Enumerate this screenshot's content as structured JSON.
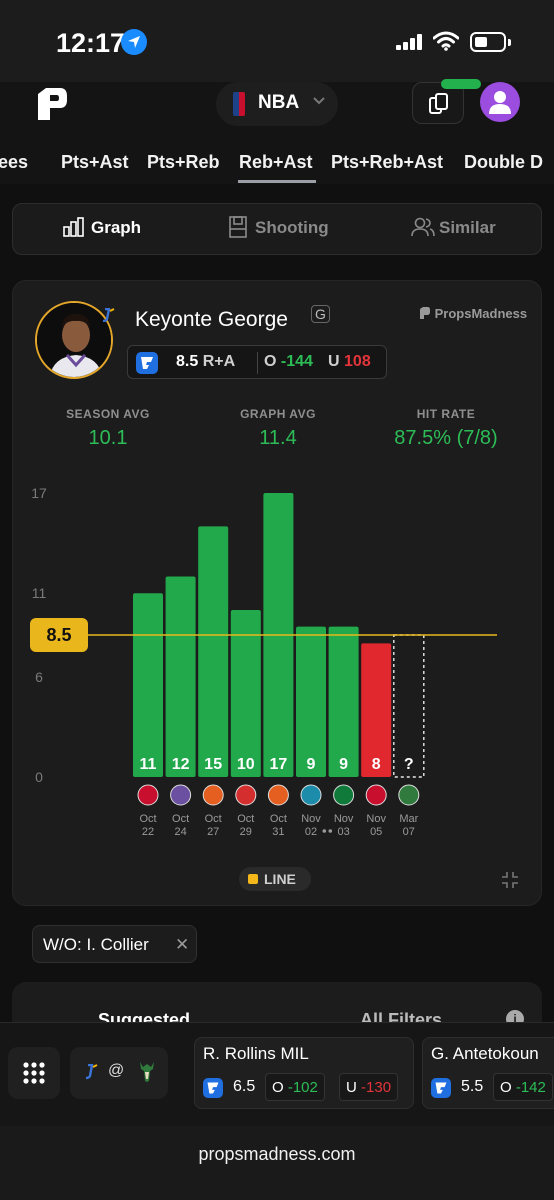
{
  "status": {
    "time": "12:17"
  },
  "header": {
    "league": "NBA"
  },
  "tabs": [
    "ees",
    "Pts+Ast",
    "Pts+Reb",
    "Reb+Ast",
    "Pts+Reb+Ast",
    "Double D"
  ],
  "active_tab": "Reb+Ast",
  "view_switch": {
    "graph": "Graph",
    "shooting": "Shooting",
    "similar": "Similar"
  },
  "player": {
    "name": "Keyonte George",
    "position": "G",
    "brand": "PropsMadness",
    "line": "8.5",
    "stat": "R+A",
    "over_label": "O",
    "over_odds": "-144",
    "under_label": "U",
    "under_odds": "108"
  },
  "stats": {
    "season_avg_label": "SEASON AVG",
    "season_avg": "10.1",
    "graph_avg_label": "GRAPH AVG",
    "graph_avg": "11.4",
    "hit_rate_label": "HIT RATE",
    "hit_rate": "87.5% (7/8)"
  },
  "chart_data": {
    "type": "bar",
    "categories": [
      "Oct 22",
      "Oct 24",
      "Oct 27",
      "Oct 29",
      "Oct 31",
      "Nov 02",
      "Nov 03",
      "Nov 05",
      "Mar 07"
    ],
    "values": [
      11,
      12,
      15,
      10,
      17,
      9,
      9,
      8,
      null
    ],
    "value_labels": [
      "11",
      "12",
      "15",
      "10",
      "17",
      "9",
      "9",
      "8",
      "?"
    ],
    "date_top": [
      "Oct",
      "Oct",
      "Oct",
      "Oct",
      "Oct",
      "Nov",
      "Nov",
      "Nov",
      "Mar"
    ],
    "date_bottom": [
      "22",
      "24",
      "27",
      "29",
      "31",
      "02",
      "03",
      "05",
      "07"
    ],
    "opponents": [
      "LAC",
      "SAC",
      "PHX",
      "POR",
      "PHX",
      "CHA",
      "BOS",
      "DET",
      "MIL"
    ],
    "y_ticks": [
      0,
      6,
      11,
      17
    ],
    "ylim": [
      0,
      17
    ],
    "line_value": 8.5,
    "line_label": "8.5",
    "colors": {
      "over": "#22a94b",
      "under": "#e0282e",
      "line": "#e9b71c"
    }
  },
  "chart_legend": {
    "line": "LINE"
  },
  "filter_chip": {
    "label": "W/O: I. Collier"
  },
  "filters": {
    "suggested": "Suggested",
    "all": "All Filters",
    "info": "i"
  },
  "bottom": {
    "matchup_at": "@",
    "props": [
      {
        "name": "R. Rollins",
        "team": "MIL",
        "line": "6.5",
        "over_label": "O",
        "over": "-102",
        "under_label": "U",
        "under": "-130"
      },
      {
        "name": "G. Antetokoun",
        "team": "",
        "line": "5.5",
        "over_label": "O",
        "over": "-142"
      }
    ]
  },
  "url": "propsmadness.com"
}
